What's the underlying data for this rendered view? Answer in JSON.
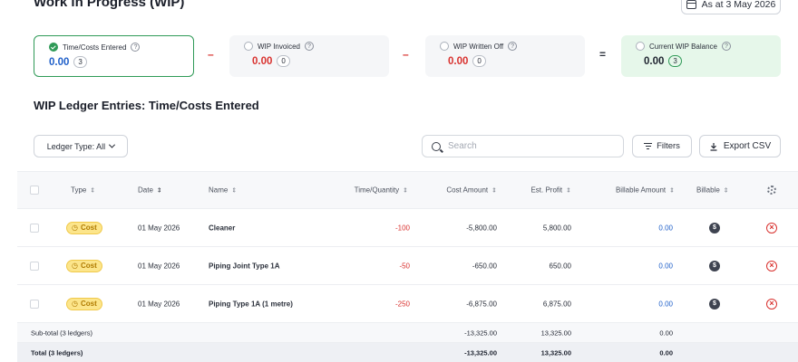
{
  "header": {
    "title": "Work in Progress (WIP)",
    "as_at_label": "As at 3 May 2026"
  },
  "summary": {
    "cards": [
      {
        "label": "Time/Costs Entered",
        "value": "0.00",
        "count": "3",
        "value_color": "#1f5fc9"
      },
      {
        "label": "WIP Invoiced",
        "value": "0.00",
        "count": "0",
        "value_color": "#d9322f"
      },
      {
        "label": "WIP Written Off",
        "value": "0.00",
        "count": "0",
        "value_color": "#d9322f"
      },
      {
        "label": "Current WIP Balance",
        "value": "0.00",
        "count": "3",
        "value_color": "#1b1f2a"
      }
    ],
    "operators": [
      "–",
      "–",
      "="
    ],
    "help_glyph": "?"
  },
  "section": {
    "title": "WIP Ledger Entries: Time/Costs Entered"
  },
  "toolbar": {
    "ledger_type_label": "Ledger Type: All",
    "search_placeholder": "Search",
    "filters_label": "Filters",
    "export_label": "Export CSV"
  },
  "table": {
    "columns": {
      "type": "Type",
      "date": "Date",
      "name": "Name",
      "time_quantity": "Time/Quantity",
      "cost_amount": "Cost Amount",
      "est_profit": "Est. Profit",
      "billable_amount": "Billable Amount",
      "billable": "Billable"
    },
    "rows": [
      {
        "type": "Cost",
        "date": "01 May 2026",
        "name": "Cleaner",
        "time_quantity": "-100",
        "cost_amount": "-5,800.00",
        "est_profit": "5,800.00",
        "billable_amount": "0.00",
        "billable_icon": "$",
        "remove_icon": "×"
      },
      {
        "type": "Cost",
        "date": "01 May 2026",
        "name": "Piping Joint Type 1A",
        "time_quantity": "-50",
        "cost_amount": "-650.00",
        "est_profit": "650.00",
        "billable_amount": "0.00",
        "billable_icon": "$",
        "remove_icon": "×"
      },
      {
        "type": "Cost",
        "date": "01 May 2026",
        "name": "Piping Type 1A (1 metre)",
        "time_quantity": "-250",
        "cost_amount": "-6,875.00",
        "est_profit": "6,875.00",
        "billable_amount": "0.00",
        "billable_icon": "$",
        "remove_icon": "×"
      }
    ],
    "subtotal": {
      "label": "Sub-total (3 ledgers)",
      "cost_amount": "-13,325.00",
      "est_profit": "13,325.00",
      "billable_amount": "0.00"
    },
    "total": {
      "label": "Total (3 ledgers)",
      "cost_amount": "-13,325.00",
      "est_profit": "13,325.00",
      "billable_amount": "0.00"
    }
  }
}
